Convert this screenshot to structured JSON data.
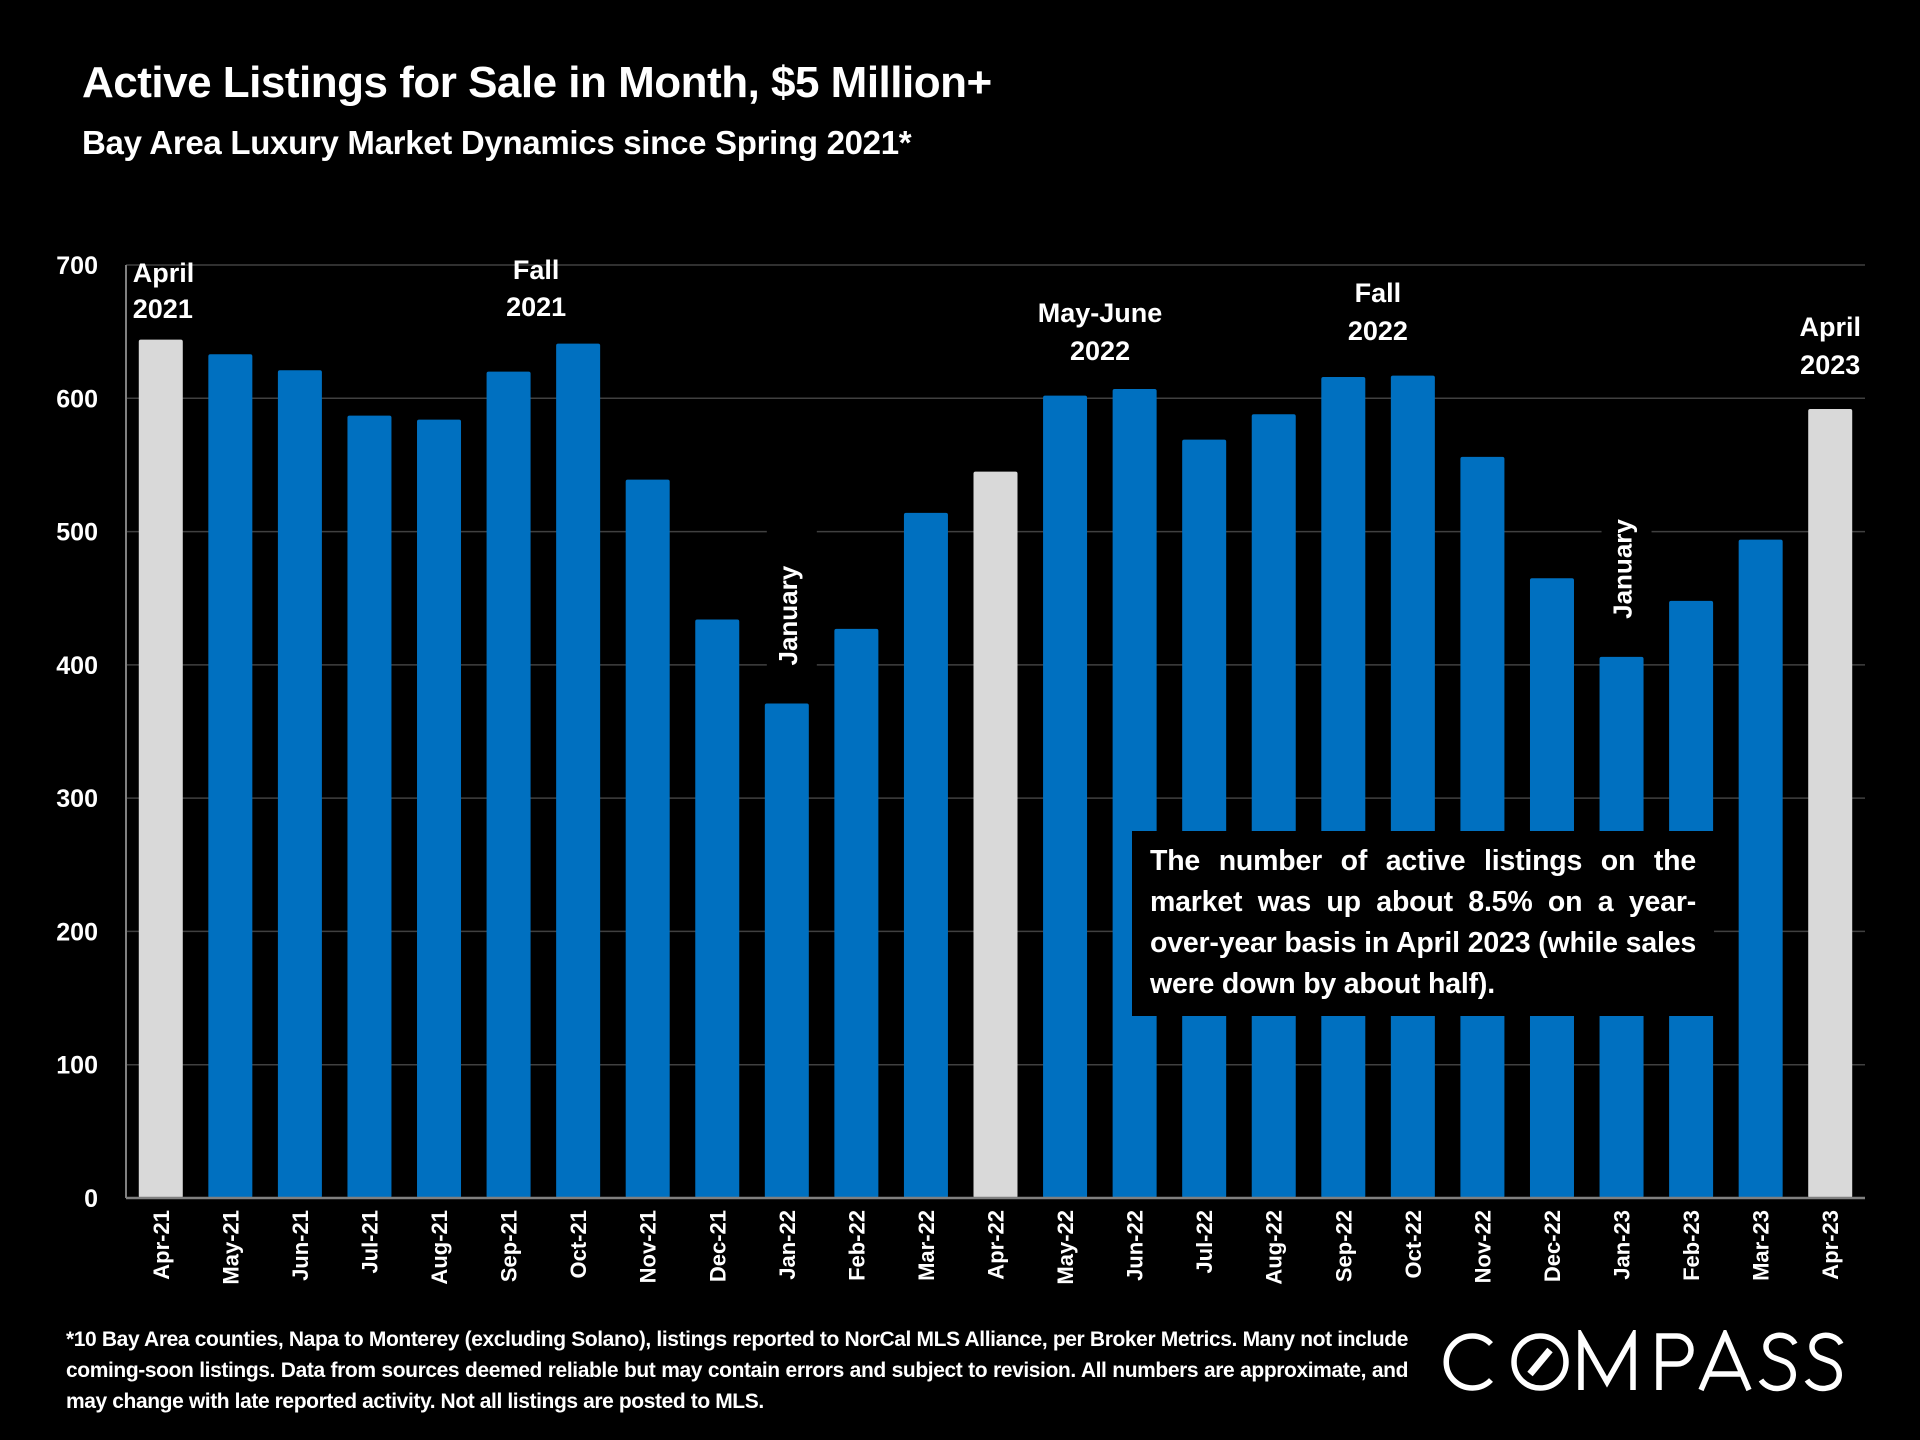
{
  "header": {
    "title": "Active Listings for Sale in Month, $5 Million+",
    "subtitle": "Bay Area Luxury Market Dynamics since Spring 2021*"
  },
  "colors": {
    "background": "#000000",
    "bar_primary": "#0070C0",
    "bar_highlight": "#D9D9D9",
    "gridline": "#404040",
    "axis": "#808080",
    "text": "#FFFFFF"
  },
  "chart_data": {
    "type": "bar",
    "title": "Active Listings for Sale in Month, $5 Million+",
    "subtitle": "Bay Area Luxury Market Dynamics since Spring 2021*",
    "xlabel": "",
    "ylabel": "",
    "ylim": [
      0,
      700
    ],
    "yticks": [
      0,
      100,
      200,
      300,
      400,
      500,
      600,
      700
    ],
    "grid": true,
    "legend": "none",
    "categories": [
      "Apr-21",
      "May-21",
      "Jun-21",
      "Jul-21",
      "Aug-21",
      "Sep-21",
      "Oct-21",
      "Nov-21",
      "Dec-21",
      "Jan-22",
      "Feb-22",
      "Mar-22",
      "Apr-22",
      "May-22",
      "Jun-22",
      "Jul-22",
      "Aug-22",
      "Sep-22",
      "Oct-22",
      "Nov-22",
      "Dec-22",
      "Jan-23",
      "Feb-23",
      "Mar-23",
      "Apr-23"
    ],
    "values": [
      644,
      633,
      621,
      587,
      584,
      620,
      641,
      539,
      434,
      371,
      427,
      514,
      545,
      602,
      607,
      569,
      588,
      616,
      617,
      556,
      465,
      406,
      448,
      494,
      592
    ],
    "highlighted_categories": [
      "Apr-21",
      "Apr-22",
      "Apr-23"
    ],
    "annotations": [
      {
        "category": "Apr-21",
        "lines": [
          "April",
          "2021"
        ],
        "orientation": "horizontal"
      },
      {
        "category": "Oct-21",
        "lines": [
          "Fall",
          "2021"
        ],
        "orientation": "horizontal"
      },
      {
        "category": "Jan-22",
        "lines": [
          "January"
        ],
        "orientation": "vertical"
      },
      {
        "category": "May-22",
        "lines": [
          "May-June",
          "2022"
        ],
        "orientation": "horizontal"
      },
      {
        "category": "Oct-22",
        "lines": [
          "Fall",
          "2022"
        ],
        "orientation": "horizontal"
      },
      {
        "category": "Jan-23",
        "lines": [
          "January"
        ],
        "orientation": "vertical"
      },
      {
        "category": "Apr-23",
        "lines": [
          "April",
          "2023"
        ],
        "orientation": "horizontal"
      }
    ]
  },
  "callout": {
    "text": "The number of active listings on the market was up about 8.5% on a year-over-year basis in April 2023 (while sales were down by about half)."
  },
  "footnote": {
    "text": "*10 Bay Area counties, Napa to Monterey (excluding Solano), listings reported to NorCal MLS Alliance, per Broker Metrics. Many not include coming-soon listings. Data from sources deemed reliable but may contain errors and subject to revision. All numbers are approximate, and may change with late reported activity. Not all listings are posted to MLS."
  },
  "brand": {
    "logo_text": "COMPASS"
  }
}
